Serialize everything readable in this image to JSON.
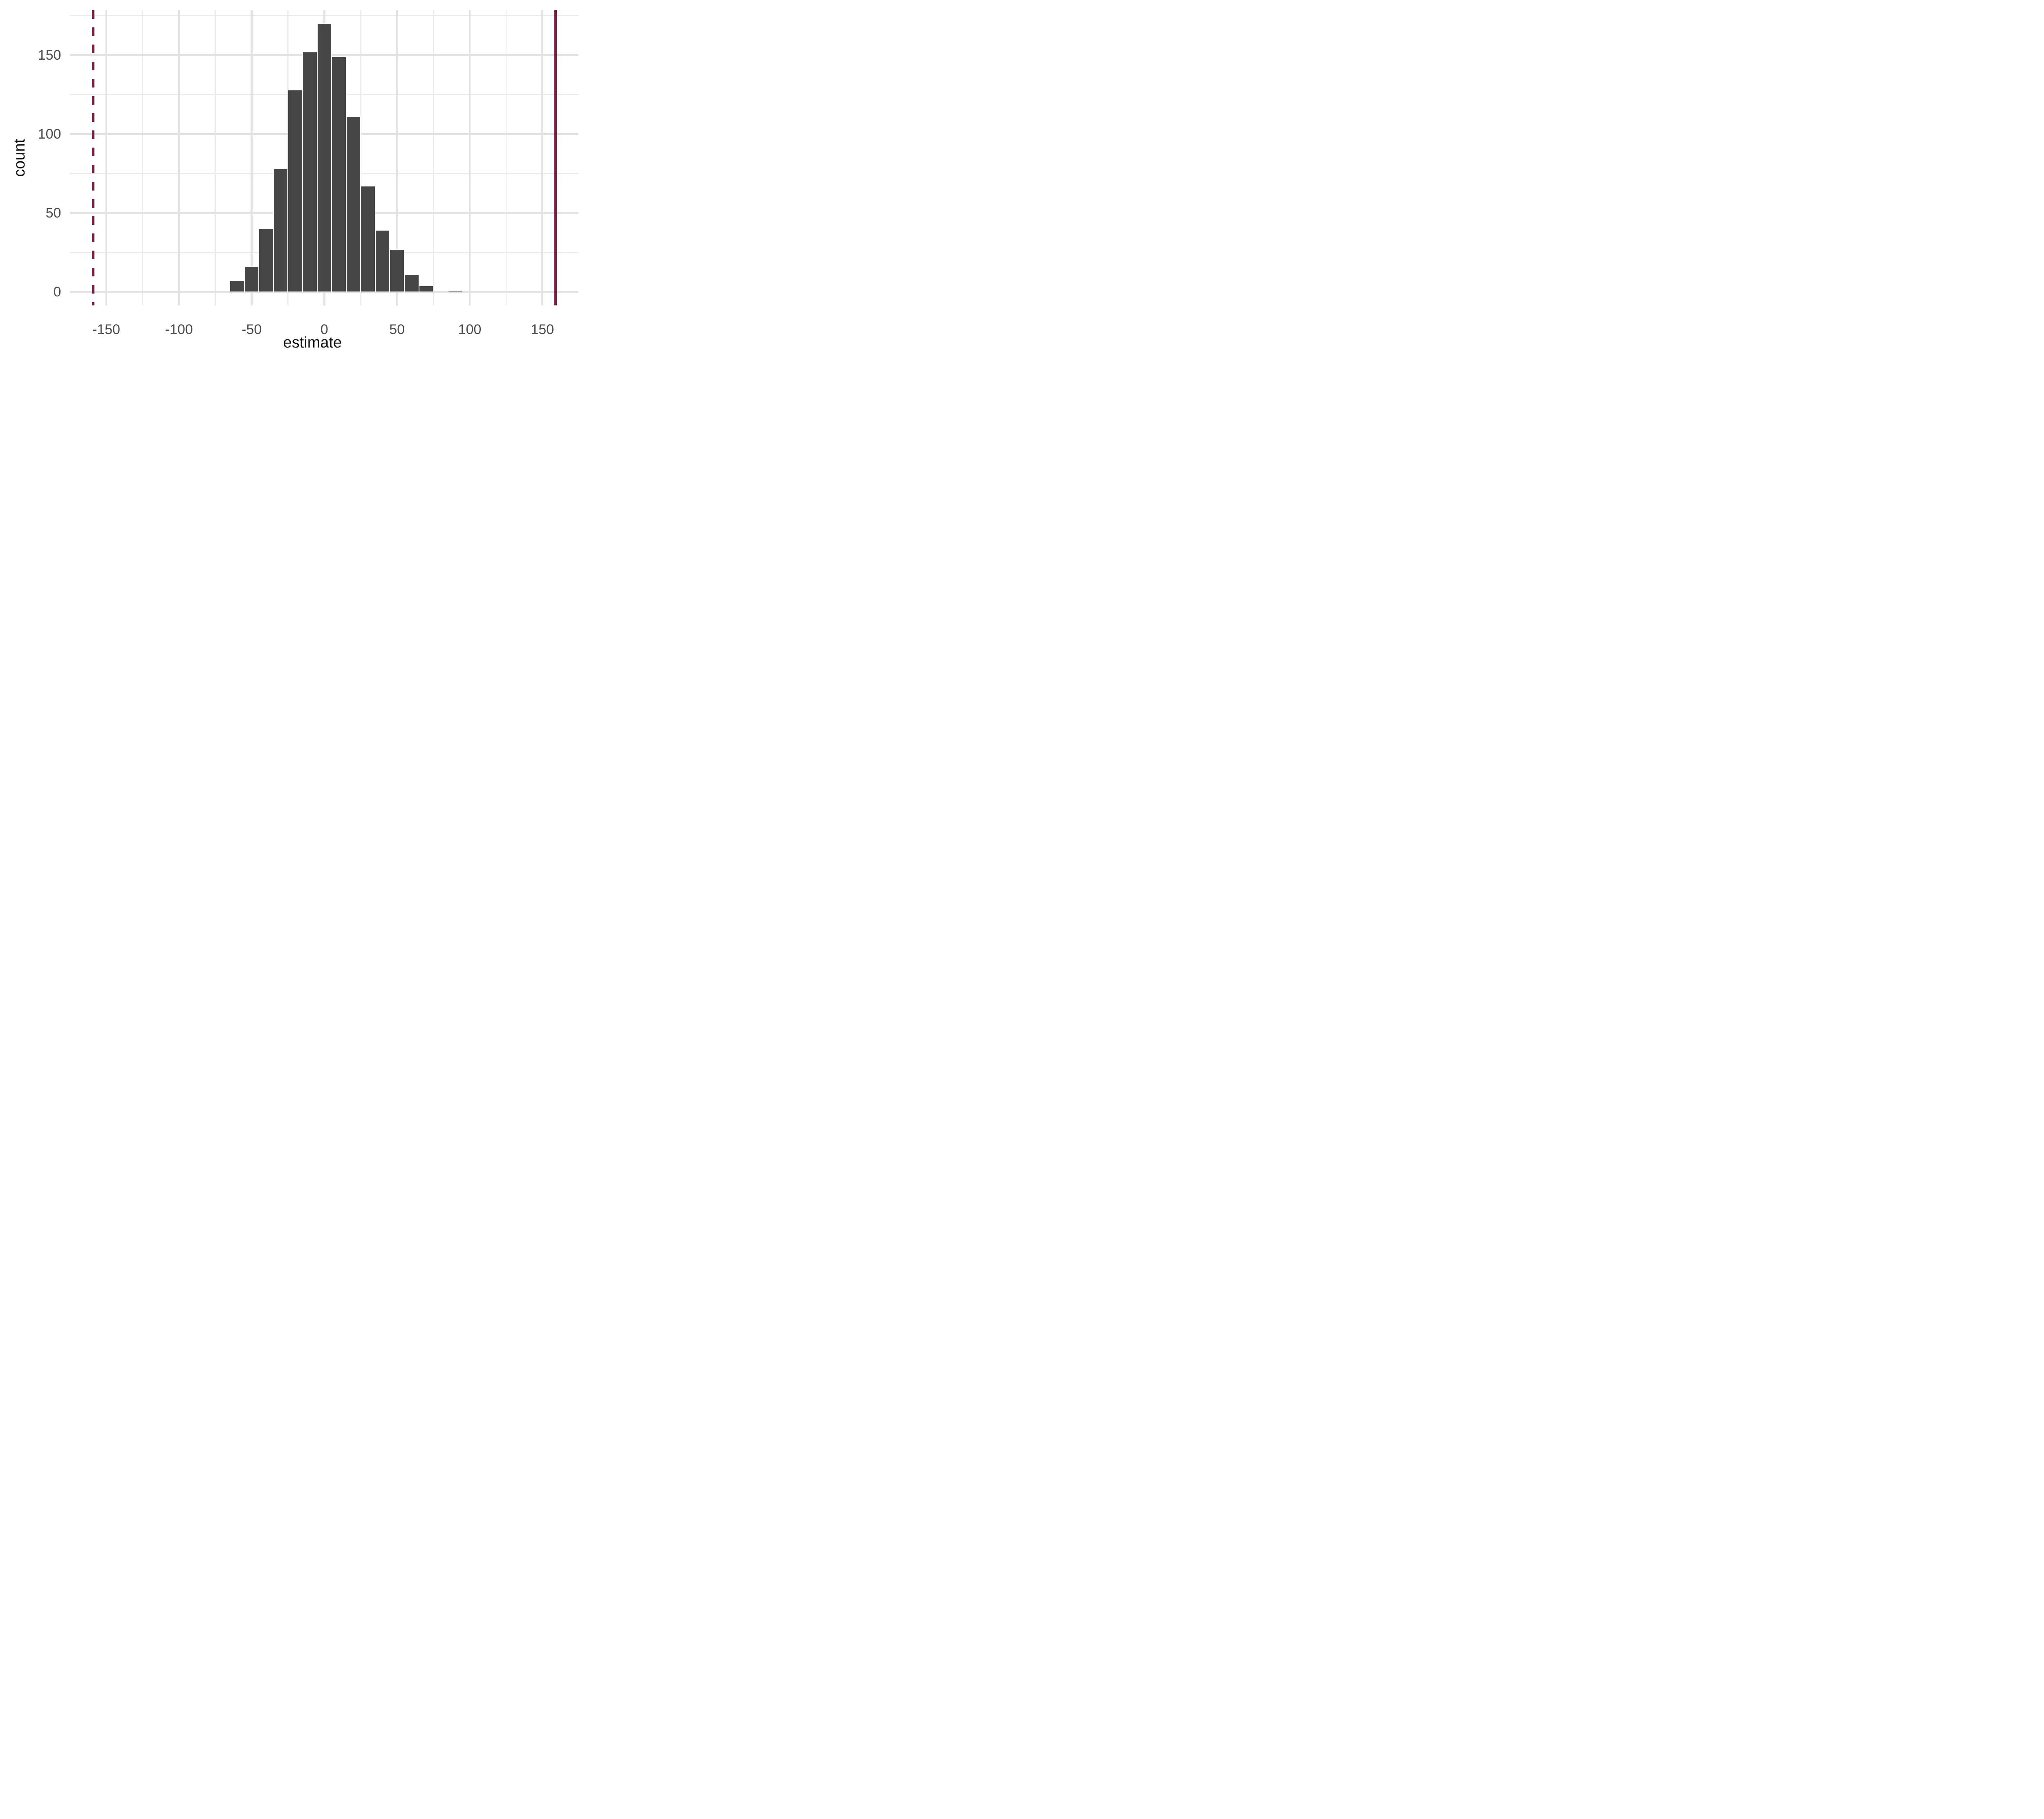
{
  "chart_data": {
    "type": "bar",
    "subtype": "histogram",
    "title": "",
    "xlabel": "estimate",
    "ylabel": "count",
    "bin_width": 10,
    "bin_centers": [
      -60,
      -50,
      -40,
      -30,
      -20,
      -10,
      0,
      10,
      20,
      30,
      40,
      50,
      60,
      70,
      80,
      90
    ],
    "values": [
      7,
      16,
      40,
      78,
      128,
      152,
      170,
      149,
      111,
      67,
      39,
      27,
      11,
      4,
      0,
      1
    ],
    "total_count": 1000,
    "x_ticks": [
      -150,
      -100,
      -50,
      0,
      50,
      100,
      150
    ],
    "y_ticks": [
      0,
      50,
      100,
      150
    ],
    "x_minor_gridlines": [
      -125,
      -75,
      -25,
      25,
      75,
      125
    ],
    "y_minor_gridlines": [
      25,
      75,
      125,
      175
    ],
    "xlim": [
      -174.9,
      174.9
    ],
    "ylim": [
      -8.5,
      178.5
    ],
    "grid": "on",
    "legend": "none",
    "vlines": [
      {
        "x": -159,
        "style": "dashed",
        "name": "null-boundary-line-dashed"
      },
      {
        "x": 159,
        "style": "solid",
        "name": "observed-estimate-line-solid"
      }
    ],
    "colors": {
      "bar_fill": "#464646",
      "bar_outline": "#ffffff",
      "major_gridline": "#e3e3e3",
      "minor_gridline": "#ebebeb",
      "vline": "#7b1c44",
      "tick_text": "#4d4d4d",
      "title_text": "#111111",
      "background": "#ffffff"
    }
  }
}
